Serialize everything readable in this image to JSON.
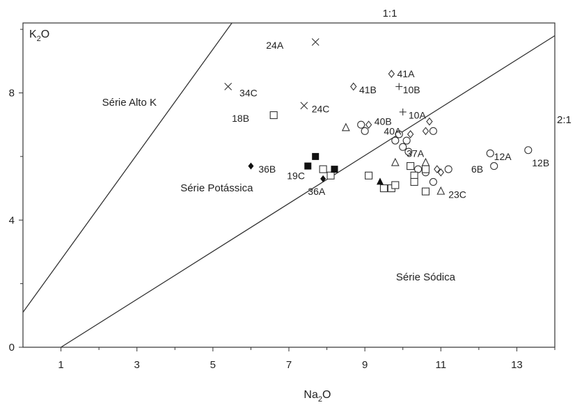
{
  "chart_data": {
    "type": "scatter",
    "title": "",
    "xlabel": "Na2O",
    "ylabel": "K2O",
    "xlabel_parts": [
      "Na",
      "2",
      "O"
    ],
    "ylabel_parts": [
      "K",
      "2",
      "O"
    ],
    "xlim": [
      0,
      14
    ],
    "ylim": [
      0,
      10.2
    ],
    "x_ticks": [
      1,
      3,
      5,
      7,
      9,
      11,
      13
    ],
    "y_ticks": [
      0,
      4,
      8
    ],
    "grid": false,
    "legend": "none",
    "reference_lines": [
      {
        "name": "1:1",
        "label": "1:1",
        "points": [
          [
            0,
            1.1
          ],
          [
            5.5,
            10.2
          ]
        ]
      },
      {
        "name": "2:1",
        "label": "2:1",
        "points": [
          [
            1,
            0
          ],
          [
            14,
            9.8
          ]
        ]
      }
    ],
    "regions": [
      {
        "label": "Série Alto K",
        "x": 2.8,
        "y": 7.6
      },
      {
        "label": "Série Potássica",
        "x": 5.1,
        "y": 4.9
      },
      {
        "label": "Série Sódica",
        "x": 10.6,
        "y": 2.1
      }
    ],
    "points": [
      {
        "m": "x",
        "x": 7.7,
        "y": 9.6,
        "label": "24A",
        "lx": 6.4,
        "ly": 9.5
      },
      {
        "m": "x",
        "x": 5.4,
        "y": 8.2,
        "label": "34C",
        "lx": 5.7,
        "ly": 8.0
      },
      {
        "m": "x",
        "x": 7.4,
        "y": 7.6,
        "label": "24C",
        "lx": 7.6,
        "ly": 7.5
      },
      {
        "m": "sq",
        "x": 6.6,
        "y": 7.3,
        "label": "18B",
        "lx": 5.5,
        "ly": 7.2
      },
      {
        "m": "dia",
        "x": 8.7,
        "y": 8.2,
        "label": "41B",
        "lx": 8.85,
        "ly": 8.1
      },
      {
        "m": "dia",
        "x": 9.7,
        "y": 8.6,
        "label": "41A",
        "lx": 9.85,
        "ly": 8.6
      },
      {
        "m": "plus",
        "x": 9.9,
        "y": 8.2,
        "label": "10B",
        "lx": 10.0,
        "ly": 8.1
      },
      {
        "m": "plus",
        "x": 10.0,
        "y": 7.4,
        "label": "10A",
        "lx": 10.15,
        "ly": 7.3
      },
      {
        "m": "dia",
        "x": 9.1,
        "y": 7.0,
        "label": "40B",
        "lx": 9.25,
        "ly": 7.1
      },
      {
        "m": "dia",
        "x": 10.2,
        "y": 6.7,
        "label": "40A",
        "lx": 9.5,
        "ly": 6.8
      },
      {
        "m": "dia",
        "x": 10.6,
        "y": 6.8
      },
      {
        "m": "dia",
        "x": 10.7,
        "y": 7.1
      },
      {
        "m": "dia",
        "x": 10.9,
        "y": 5.6
      },
      {
        "m": "dia",
        "x": 11.0,
        "y": 5.5
      },
      {
        "m": "circ",
        "x": 8.9,
        "y": 7.0
      },
      {
        "m": "circ",
        "x": 9.0,
        "y": 6.8
      },
      {
        "m": "circ",
        "x": 9.8,
        "y": 6.5
      },
      {
        "m": "circ",
        "x": 9.9,
        "y": 6.7
      },
      {
        "m": "circ",
        "x": 10.0,
        "y": 6.3
      },
      {
        "m": "circ",
        "x": 10.1,
        "y": 6.5
      },
      {
        "m": "circ",
        "x": 10.15,
        "y": 6.15
      },
      {
        "m": "circ",
        "x": 10.4,
        "y": 5.6
      },
      {
        "m": "circ",
        "x": 10.6,
        "y": 5.5
      },
      {
        "m": "circ",
        "x": 10.8,
        "y": 6.8
      },
      {
        "m": "circ",
        "x": 10.8,
        "y": 5.2
      },
      {
        "m": "circ",
        "x": 11.2,
        "y": 5.6
      },
      {
        "m": "circ",
        "x": 12.3,
        "y": 6.1,
        "label": "12A",
        "lx": 12.4,
        "ly": 6.0
      },
      {
        "m": "circ",
        "x": 13.3,
        "y": 6.2,
        "label": "12B",
        "lx": 13.4,
        "ly": 5.8
      },
      {
        "m": "circ",
        "x": 12.4,
        "y": 5.7,
        "label": "6B",
        "lx": 11.8,
        "ly": 5.6
      },
      {
        "m": "tri",
        "x": 8.5,
        "y": 6.9
      },
      {
        "m": "tri",
        "x": 9.8,
        "y": 5.8
      },
      {
        "m": "tri",
        "x": 11.0,
        "y": 4.9,
        "label": "23C",
        "lx": 11.2,
        "ly": 4.8
      },
      {
        "m": "tri",
        "x": 10.6,
        "y": 5.8,
        "label": "37A",
        "lx": 10.1,
        "ly": 6.1
      },
      {
        "m": "sq",
        "x": 7.9,
        "y": 5.6
      },
      {
        "m": "sq",
        "x": 8.1,
        "y": 5.4
      },
      {
        "m": "sq",
        "x": 9.1,
        "y": 5.4
      },
      {
        "m": "sq",
        "x": 9.5,
        "y": 5.0
      },
      {
        "m": "sq",
        "x": 9.7,
        "y": 5.0
      },
      {
        "m": "sq",
        "x": 9.8,
        "y": 5.1
      },
      {
        "m": "sq",
        "x": 10.2,
        "y": 5.7
      },
      {
        "m": "sq",
        "x": 10.3,
        "y": 5.4
      },
      {
        "m": "sq",
        "x": 10.3,
        "y": 5.2
      },
      {
        "m": "sq",
        "x": 10.6,
        "y": 5.6
      },
      {
        "m": "sq",
        "x": 10.6,
        "y": 4.9
      },
      {
        "m": "sqf",
        "x": 7.7,
        "y": 6.0
      },
      {
        "m": "sqf",
        "x": 7.5,
        "y": 5.7,
        "label": "19C",
        "lx": 6.95,
        "ly": 5.4
      },
      {
        "m": "sqf",
        "x": 8.2,
        "y": 5.6
      },
      {
        "m": "diaf",
        "x": 6.0,
        "y": 5.7,
        "label": "36B",
        "lx": 6.2,
        "ly": 5.6
      },
      {
        "m": "diaf",
        "x": 7.9,
        "y": 5.3,
        "label": "36A",
        "lx": 7.5,
        "ly": 4.9
      },
      {
        "m": "trif",
        "x": 9.4,
        "y": 5.2
      }
    ]
  }
}
